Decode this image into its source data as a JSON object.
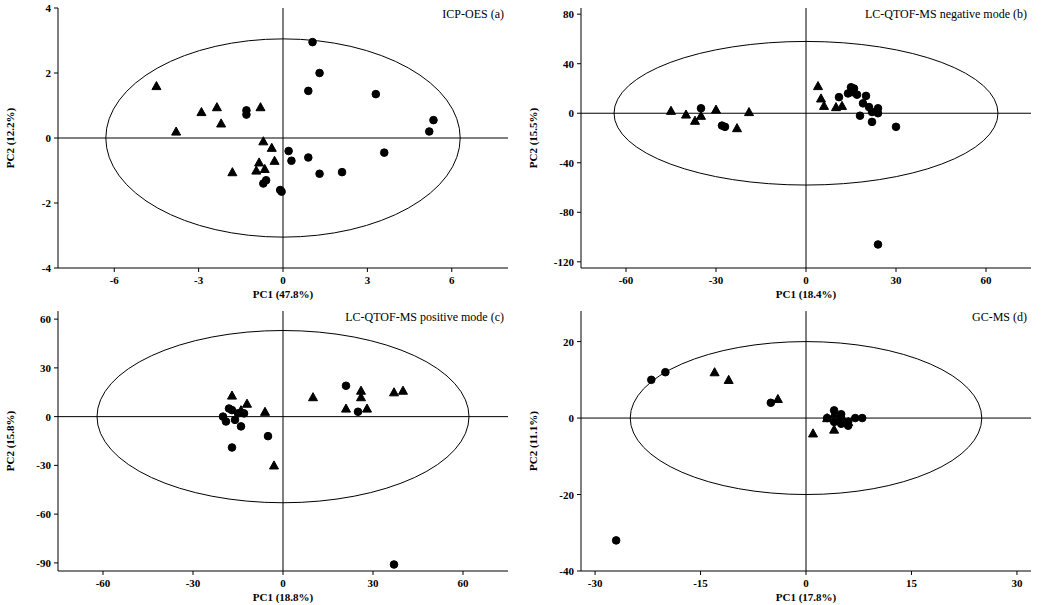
{
  "chart_data": [
    {
      "type": "scatter",
      "title": "ICP-OES (a)",
      "xlabel": "PC1 (47.8%)",
      "ylabel": "PC2 (12.2%)",
      "xlim": [
        -8,
        8
      ],
      "ylim": [
        -4,
        4
      ],
      "xticks": [
        -6,
        -3,
        0,
        3,
        6
      ],
      "yticks": [
        -4,
        -2,
        0,
        2,
        4
      ],
      "ellipse": {
        "x_radius": 6.3,
        "y_radius": 3.05
      },
      "series": [
        {
          "marker": "triangle",
          "color": "#000000",
          "x": [
            -4.5,
            -3.8,
            -2.9,
            -2.35,
            -2.2,
            -1.8,
            -0.8,
            -0.7,
            -0.4,
            -0.3,
            -0.65,
            -0.95,
            -0.85
          ],
          "values": [
            1.6,
            0.2,
            0.8,
            0.95,
            0.45,
            -1.05,
            0.95,
            -0.1,
            -0.3,
            -0.7,
            -0.95,
            -1.0,
            -0.75
          ]
        },
        {
          "marker": "circle",
          "color": "#000000",
          "x": [
            -1.3,
            -1.3,
            -0.6,
            -0.7,
            -0.1,
            -0.05,
            0.3,
            0.2,
            0.9,
            1.05,
            1.3,
            0.9,
            1.3,
            2.1,
            3.3,
            3.6,
            5.2,
            5.35
          ],
          "values": [
            0.85,
            0.72,
            -1.3,
            -1.4,
            -1.6,
            -1.65,
            -0.7,
            -0.4,
            1.45,
            2.95,
            2.0,
            -0.6,
            -1.1,
            -1.05,
            1.35,
            -0.45,
            0.2,
            0.55
          ]
        }
      ]
    },
    {
      "type": "scatter",
      "title": "LC-QTOF-MS negative mode (b)",
      "xlabel": "PC1 (18.4%)",
      "ylabel": "PC2 (15.5%)",
      "xlim": [
        -75,
        75
      ],
      "ylim": [
        -125,
        85
      ],
      "xticks": [
        -60,
        -30,
        0,
        30,
        60
      ],
      "yticks": [
        -120,
        -80,
        -40,
        0,
        40,
        80
      ],
      "ellipse": {
        "x_radius": 64,
        "y_radius": 58
      },
      "series": [
        {
          "marker": "triangle",
          "color": "#000000",
          "x": [
            -45,
            -40,
            -37,
            -35,
            -30,
            -23,
            -19,
            4,
            5,
            6,
            10,
            12,
            15
          ],
          "values": [
            2,
            -1,
            -6,
            -2,
            3,
            -12,
            1,
            22,
            12,
            6,
            5,
            6,
            17
          ]
        },
        {
          "marker": "circle",
          "color": "#000000",
          "x": [
            -35,
            -28,
            -27,
            11,
            14,
            15,
            16,
            17,
            18,
            19,
            20,
            22,
            21,
            22,
            24,
            24,
            30,
            24
          ],
          "values": [
            4,
            -10,
            -11,
            13,
            16,
            21,
            20,
            15,
            -2,
            8,
            14,
            1,
            5,
            -7,
            0,
            4,
            -11,
            -106
          ]
        }
      ]
    },
    {
      "type": "scatter",
      "title": "LC-QTOF-MS positive mode (c)",
      "xlabel": "PC1 (18.8%)",
      "ylabel": "PC2 (15.8%)",
      "xlim": [
        -75,
        75
      ],
      "ylim": [
        -95,
        65
      ],
      "xticks": [
        -60,
        -30,
        0,
        30,
        60
      ],
      "yticks": [
        -90,
        -60,
        -30,
        0,
        30,
        60
      ],
      "ellipse": {
        "x_radius": 62,
        "y_radius": 53
      },
      "series": [
        {
          "marker": "triangle",
          "color": "#000000",
          "x": [
            -17,
            -12,
            -14,
            -6,
            -3,
            10,
            21,
            26,
            26,
            28,
            37,
            40
          ],
          "values": [
            13,
            8,
            4,
            3,
            -30,
            12,
            5,
            16,
            12,
            5,
            15,
            16
          ]
        },
        {
          "marker": "circle",
          "color": "#000000",
          "x": [
            -20,
            -19,
            -18,
            -17,
            -16,
            -15,
            -14,
            -13,
            -17,
            -5,
            21,
            25,
            37
          ],
          "values": [
            0,
            -3,
            5,
            4,
            -2,
            2,
            -6,
            2,
            -19,
            -12,
            19,
            3,
            -91
          ]
        }
      ]
    },
    {
      "type": "scatter",
      "title": "GC-MS (d)",
      "xlabel": "PC1 (17.8%)",
      "ylabel": "PC2 (11.1%)",
      "xlim": [
        -32,
        32
      ],
      "ylim": [
        -40,
        28
      ],
      "xticks": [
        -30,
        -15,
        0,
        15,
        30
      ],
      "yticks": [
        -40,
        -20,
        0,
        20
      ],
      "ellipse": {
        "x_radius": 25,
        "y_radius": 20
      },
      "series": [
        {
          "marker": "triangle",
          "color": "#000000",
          "x": [
            -13,
            -11,
            -4,
            1,
            3,
            4,
            6,
            4,
            5
          ],
          "values": [
            12,
            10,
            5,
            -4,
            0,
            -3,
            -1,
            1,
            0.5
          ]
        },
        {
          "marker": "circle",
          "color": "#000000",
          "x": [
            -27,
            -22,
            -20,
            -5,
            4,
            5,
            5,
            6,
            6,
            4,
            7,
            5,
            3,
            8
          ],
          "values": [
            -32,
            10,
            12,
            4,
            2,
            1,
            0,
            -1,
            -2,
            -1,
            0,
            -1.5,
            0,
            0
          ]
        }
      ]
    }
  ]
}
